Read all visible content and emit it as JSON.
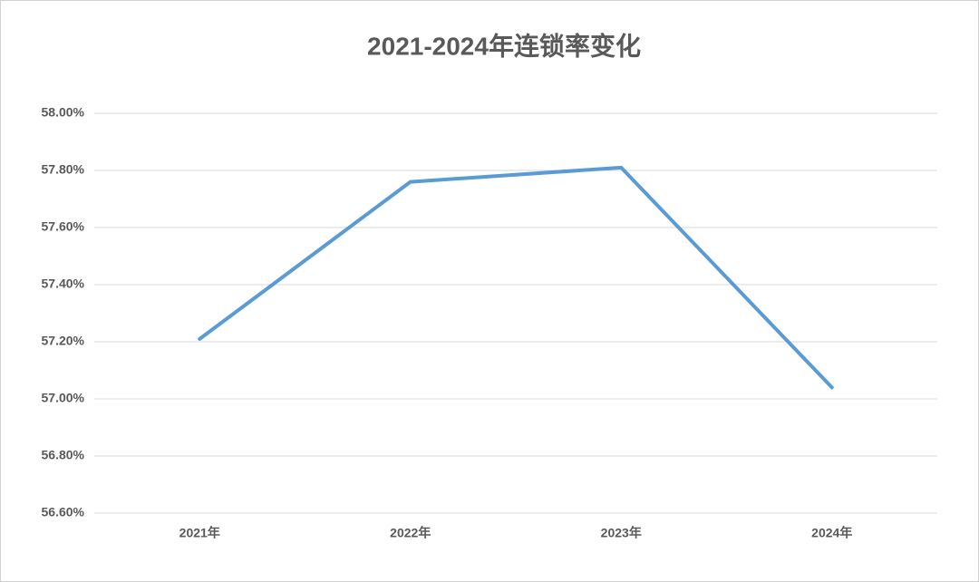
{
  "chart_data": {
    "type": "line",
    "title": "2021-2024年连锁率变化",
    "categories": [
      "2021年",
      "2022年",
      "2023年",
      "2024年"
    ],
    "series": [
      {
        "color": "#5b9bd5",
        "values": [
          57.21,
          57.76,
          57.81,
          57.04
        ]
      }
    ],
    "ylim": [
      56.6,
      58.0
    ],
    "yticks": [
      {
        "value": 56.6,
        "label": "56.60%"
      },
      {
        "value": 56.8,
        "label": "56.80%"
      },
      {
        "value": 57.0,
        "label": "57.00%"
      },
      {
        "value": 57.2,
        "label": "57.20%"
      },
      {
        "value": 57.4,
        "label": "57.40%"
      },
      {
        "value": 57.6,
        "label": "57.60%"
      },
      {
        "value": 57.8,
        "label": "57.80%"
      },
      {
        "value": 58.0,
        "label": "58.00%"
      }
    ],
    "grid": true
  }
}
